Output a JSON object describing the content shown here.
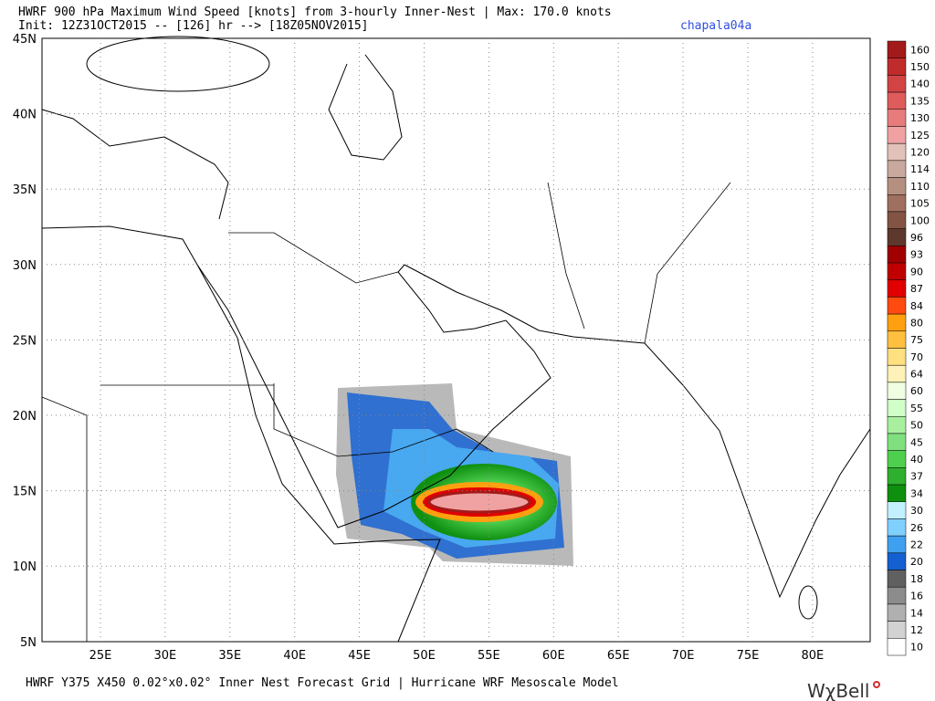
{
  "header": {
    "line1": "HWRF 900 hPa Maximum Wind Speed [knots] from 3-hourly Inner-Nest | Max: 170.0 knots",
    "line2": "Init: 12Z31OCT2015 -- [126] hr --> [18Z05NOV2015]",
    "tag": "chapala04a"
  },
  "axes": {
    "lon_labels": [
      "25E",
      "30E",
      "35E",
      "40E",
      "45E",
      "50E",
      "55E",
      "60E",
      "65E",
      "70E",
      "75E",
      "80E"
    ],
    "lat_labels": [
      "45N",
      "40N",
      "35N",
      "30N",
      "25N",
      "20N",
      "15N",
      "10N",
      "5N"
    ]
  },
  "colorbar": {
    "labels": [
      "160",
      "150",
      "140",
      "135",
      "130",
      "125",
      "120",
      "114",
      "110",
      "105",
      "100",
      "96",
      "93",
      "90",
      "87",
      "84",
      "80",
      "75",
      "70",
      "64",
      "60",
      "55",
      "50",
      "45",
      "40",
      "37",
      "34",
      "30",
      "26",
      "22",
      "20",
      "18",
      "16",
      "14",
      "12",
      "10"
    ],
    "colors": [
      "#a31a1a",
      "#c02c2c",
      "#d24444",
      "#de5c5c",
      "#e87c7c",
      "#f0a2a2",
      "#e2c2b8",
      "#c9a89e",
      "#b58f80",
      "#9f7060",
      "#835444",
      "#5e382c",
      "#a00000",
      "#c00000",
      "#e00000",
      "#ff4a10",
      "#ffa010",
      "#ffc040",
      "#ffe080",
      "#fff2b8",
      "#f0ffe2",
      "#d0ffc8",
      "#a8f0a0",
      "#80e080",
      "#4ed04e",
      "#2eb02e",
      "#0e900e",
      "#c2f0ff",
      "#80d0ff",
      "#40a0f0",
      "#1460d0",
      "#606060",
      "#8c8c8c",
      "#b0b0b0",
      "#d2d2d2",
      "#ffffff"
    ]
  },
  "footer": {
    "text": "HWRF Y375 X450 0.02°x0.02° Inner Nest Forecast Grid | Hurricane WRF Mesoscale Model",
    "logo": "WχBell"
  }
}
